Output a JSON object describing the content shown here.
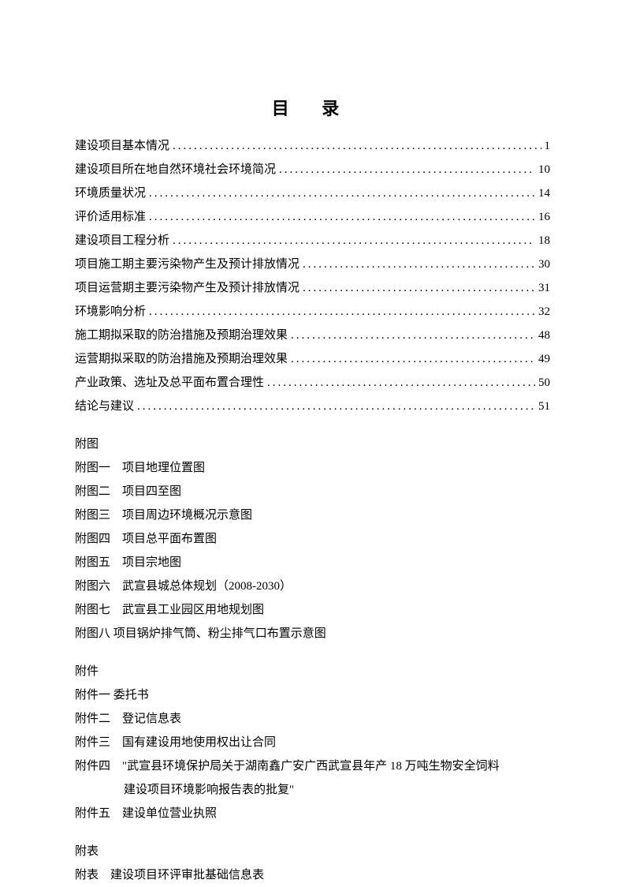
{
  "title": "目 录",
  "toc": [
    {
      "label": "建设项目基本情况",
      "page": "1"
    },
    {
      "label": "建设项目所在地自然环境社会环境简况",
      "page": "10"
    },
    {
      "label": "环境质量状况",
      "page": "14"
    },
    {
      "label": "评价适用标准",
      "page": "16"
    },
    {
      "label": "建设项目工程分析",
      "page": "18"
    },
    {
      "label": "项目施工期主要污染物产生及预计排放情况",
      "page": "30"
    },
    {
      "label": "项目运营期主要污染物产生及预计排放情况",
      "page": "31"
    },
    {
      "label": "环境影响分析",
      "page": "32"
    },
    {
      "label": "施工期拟采取的防治措施及预期治理效果",
      "page": "48"
    },
    {
      "label": "运营期拟采取的防治措施及预期治理效果",
      "page": "49"
    },
    {
      "label": "产业政策、选址及总平面布置合理性",
      "page": "50"
    },
    {
      "label": "结论与建议",
      "page": "51"
    }
  ],
  "figures": {
    "header": "附图",
    "items": [
      "附图一　项目地理位置图",
      "附图二　项目四至图",
      "附图三　项目周边环境概况示意图",
      "附图四　项目总平面布置图",
      "附图五　项目宗地图",
      "附图六　武宣县城总体规划（2008-2030）",
      "附图七　武宣县工业园区用地规划图",
      "附图八  项目锅炉排气筒、粉尘排气口布置示意图"
    ]
  },
  "attachments": {
    "header": "附件",
    "items": [
      {
        "text": "附件一  委托书"
      },
      {
        "text": "附件二　登记信息表"
      },
      {
        "text": "附件三　国有建设用地使用权出让合同"
      },
      {
        "text": "附件四　\"武宣县环境保护局关于湖南鑫广安广西武宣县年产 18 万吨生物安全饲料",
        "cont": "建设项目环境影响报告表的批复\""
      },
      {
        "text": "附件五　建设单位营业执照"
      }
    ]
  },
  "tables": {
    "header": "附表",
    "items": [
      "附表　建设项目环评审批基础信息表"
    ]
  },
  "style": {
    "text_color": "#000000",
    "background_color": "#ffffff",
    "body_fontsize": 15,
    "title_fontsize": 22,
    "line_height": 2.0
  }
}
